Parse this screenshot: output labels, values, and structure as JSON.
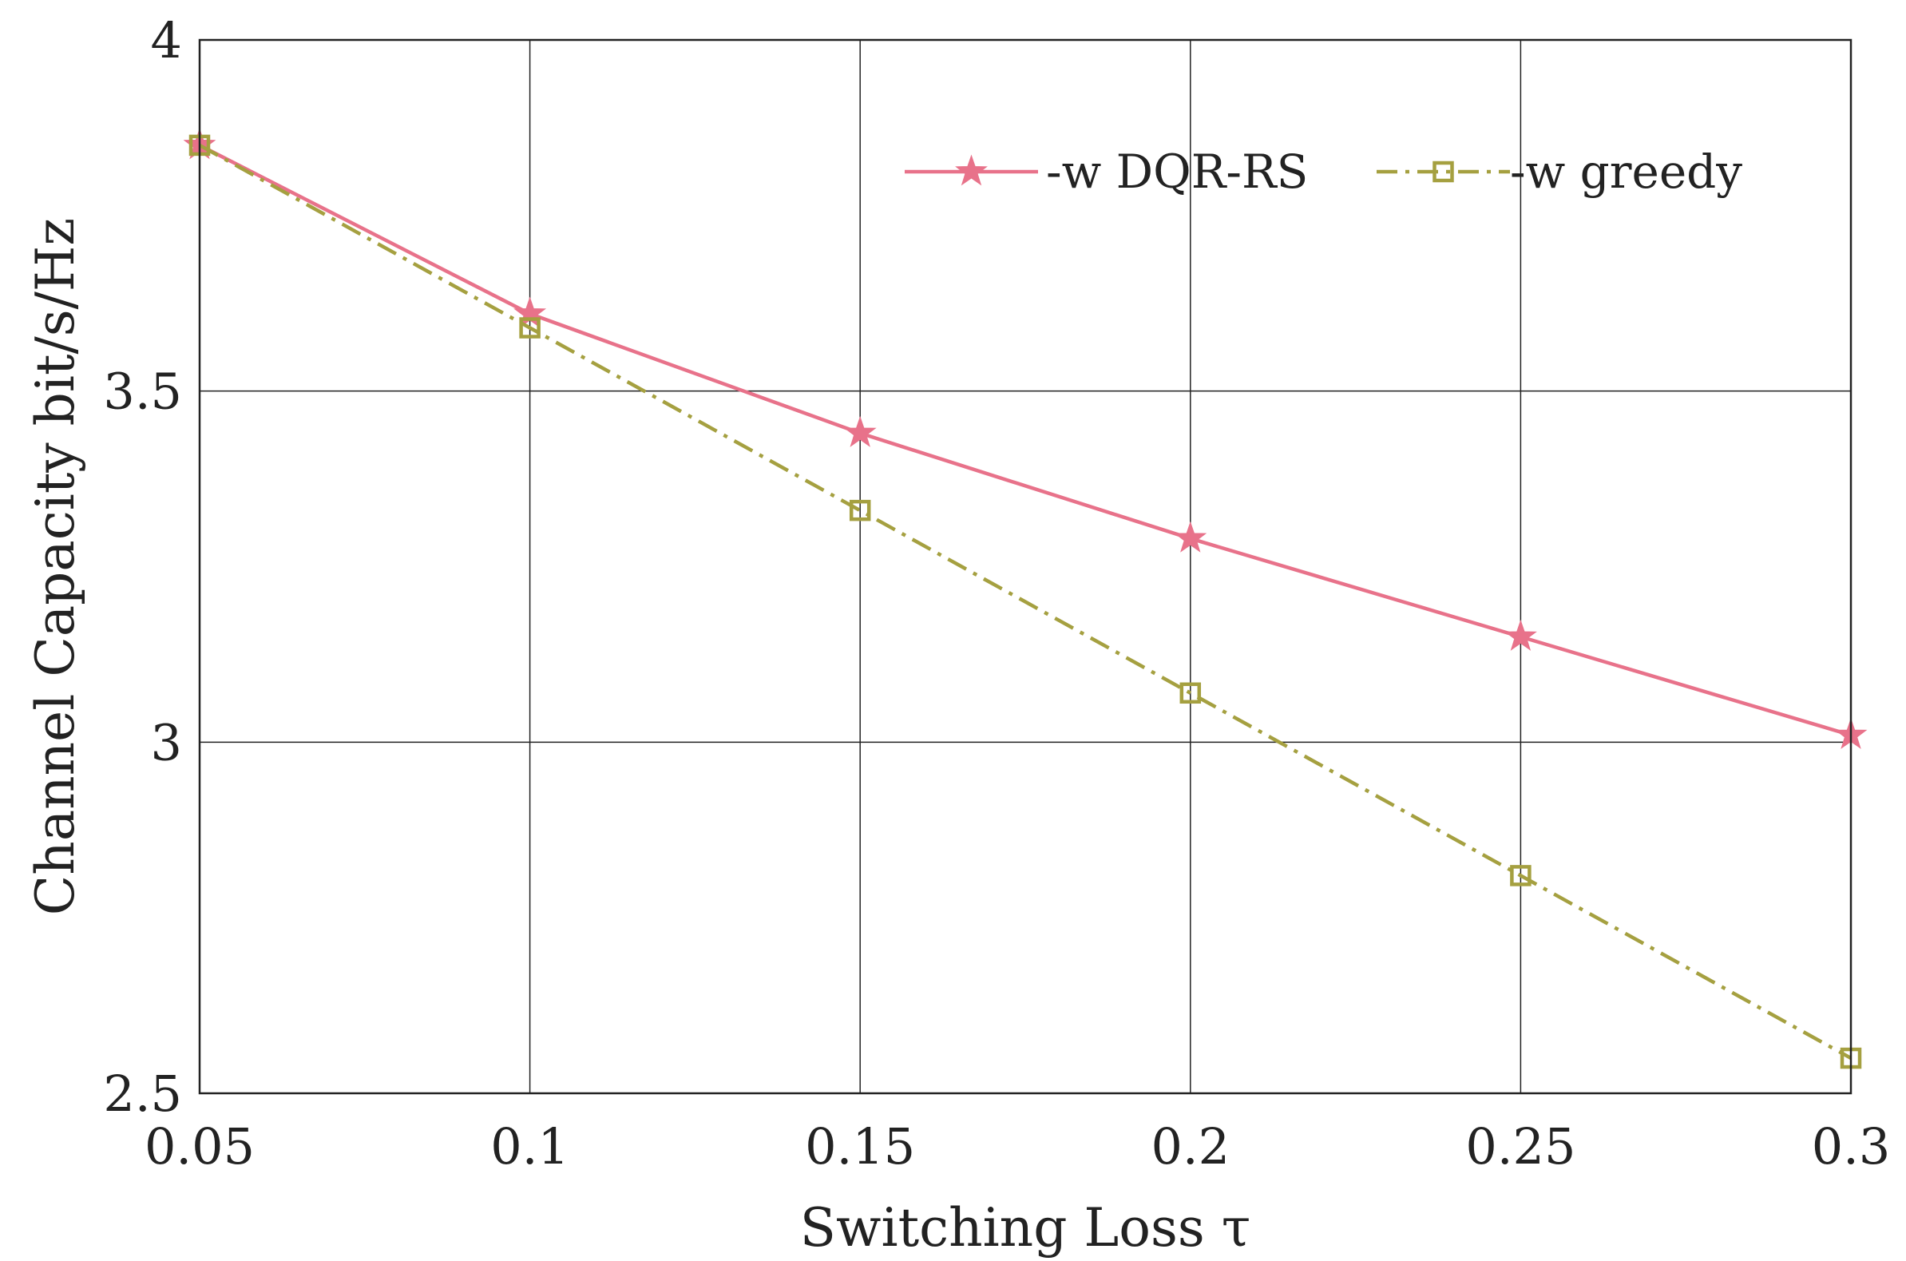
{
  "chart_data": {
    "type": "line",
    "title": "",
    "xlabel": "Switching Loss τ",
    "ylabel": "Channel Capacity bit/s/Hz",
    "x": [
      0.05,
      0.1,
      0.15,
      0.2,
      0.25,
      0.3
    ],
    "xlim": [
      0.05,
      0.3
    ],
    "ylim": [
      2.5,
      4
    ],
    "xticks": [
      "0.05",
      "0.1",
      "0.15",
      "0.2",
      "0.25",
      "0.3"
    ],
    "yticks": [
      "2.5",
      "3",
      "3.5",
      "4"
    ],
    "grid": true,
    "legend_position": "top-right",
    "series": [
      {
        "name": "-w DQR-RS",
        "values": [
          3.85,
          3.61,
          3.44,
          3.29,
          3.15,
          3.01
        ],
        "color": "#e8728a",
        "line_style": "solid",
        "marker": "star"
      },
      {
        "name": "-w greedy",
        "values": [
          3.85,
          3.59,
          3.33,
          3.07,
          2.81,
          2.55
        ],
        "color": "#a5a040",
        "line_style": "dash-dot",
        "marker": "square"
      }
    ]
  }
}
